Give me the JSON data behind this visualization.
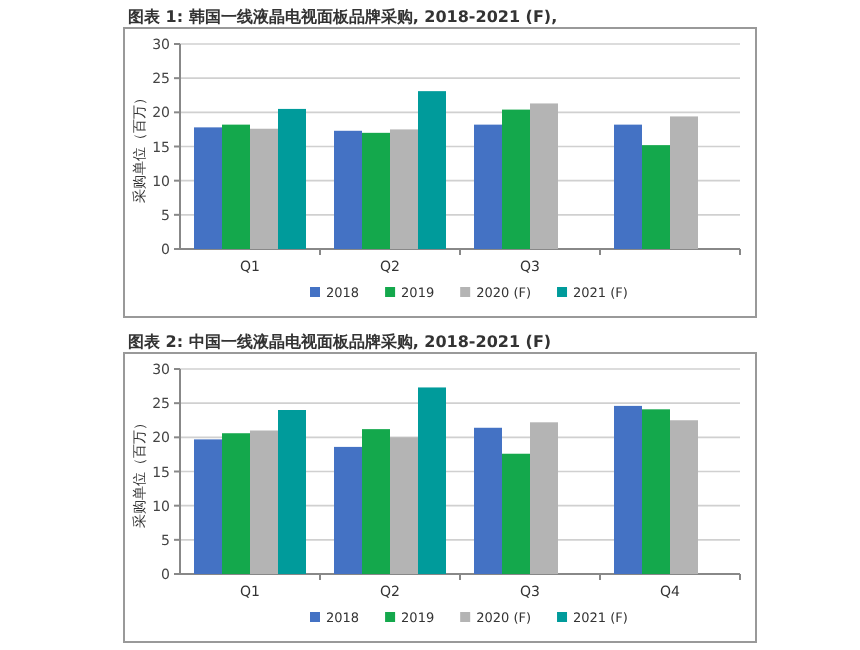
{
  "chart_data": [
    {
      "type": "bar",
      "title": "图表 1: 韩国一线液晶电视面板品牌采购, 2018-2021 (F),",
      "ylabel": "采购单位（百万）",
      "categories": [
        "Q1",
        "Q2",
        "Q3",
        null
      ],
      "series": [
        {
          "name": "2018",
          "color": "#4472c4",
          "values": [
            17.8,
            17.3,
            18.2,
            18.2
          ]
        },
        {
          "name": "2019",
          "color": "#14a84c",
          "values": [
            18.2,
            17.0,
            20.4,
            15.2
          ]
        },
        {
          "name": "2020 (F)",
          "color": "#b4b4b4",
          "values": [
            17.6,
            17.5,
            21.3,
            19.4
          ]
        },
        {
          "name": "2021 (F)",
          "color": "#009b9b",
          "values": [
            20.5,
            23.1,
            null,
            null
          ]
        }
      ],
      "ylim": [
        0,
        30
      ],
      "yticks": [
        0,
        5,
        10,
        15,
        20,
        25,
        30
      ],
      "grid": "y",
      "legend": "bottom"
    },
    {
      "type": "bar",
      "title": "图表 2: 中国一线液晶电视面板品牌采购, 2018-2021 (F)",
      "ylabel": "采购单位（百万）",
      "categories": [
        "Q1",
        "Q2",
        "Q3",
        "Q4"
      ],
      "series": [
        {
          "name": "2018",
          "color": "#4472c4",
          "values": [
            19.7,
            18.6,
            21.4,
            24.6
          ]
        },
        {
          "name": "2019",
          "color": "#14a84c",
          "values": [
            20.6,
            21.2,
            17.6,
            24.1
          ]
        },
        {
          "name": "2020 (F)",
          "color": "#b4b4b4",
          "values": [
            21.0,
            20.0,
            22.2,
            22.5
          ]
        },
        {
          "name": "2021 (F)",
          "color": "#009b9b",
          "values": [
            24.0,
            27.3,
            null,
            null
          ]
        }
      ],
      "ylim": [
        0,
        30
      ],
      "yticks": [
        0,
        5,
        10,
        15,
        20,
        25,
        30
      ],
      "grid": "y",
      "legend": "bottom"
    }
  ]
}
